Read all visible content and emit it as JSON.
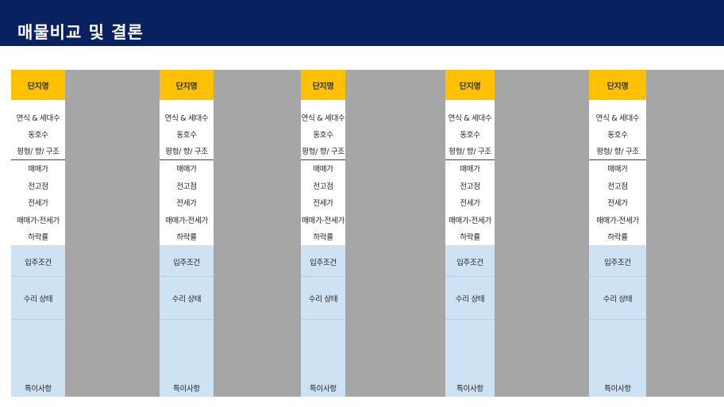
{
  "header": {
    "title": "매물비교 및 결론"
  },
  "labels": {
    "complex_name": "단지명",
    "year_units": "연식 & 세대수",
    "building_unit": "동호수",
    "area_direction_structure": "평형/ 향/ 구조",
    "sale_price": "매매가",
    "previous_high": "전고점",
    "jeonse_price": "전세가",
    "sale_minus_jeonse": "매매가-전세가",
    "decline_rate": "하락률",
    "move_in_conditions": "입주조건",
    "repair_status": "수리 상태",
    "special_notes": "특이사항"
  },
  "colors": {
    "header_bg": "#0a2160",
    "label_head": "#ffc000",
    "label_blue": "#cfe2f3",
    "value_column": "#a6a6a6"
  }
}
